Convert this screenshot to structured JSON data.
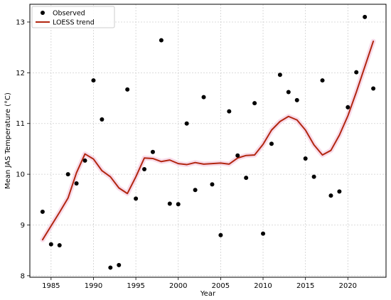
{
  "chart_data": {
    "type": "scatter",
    "xlabel": "Year",
    "ylabel": "Mean JAS Temperature (°C)",
    "xlim": [
      1982.5,
      2024.5
    ],
    "ylim": [
      7.97,
      13.35
    ],
    "x_ticks": [
      1985,
      1990,
      1995,
      2000,
      2005,
      2010,
      2015,
      2020
    ],
    "y_ticks": [
      8,
      9,
      10,
      11,
      12,
      13
    ],
    "grid": true,
    "legend": {
      "placement": "top-left"
    },
    "series": [
      {
        "name": "Observed",
        "kind": "scatter",
        "color": "#000000",
        "x": [
          1984,
          1985,
          1986,
          1987,
          1988,
          1989,
          1990,
          1991,
          1992,
          1993,
          1994,
          1995,
          1996,
          1997,
          1998,
          1999,
          2000,
          2001,
          2002,
          2003,
          2004,
          2005,
          2006,
          2007,
          2008,
          2009,
          2010,
          2011,
          2012,
          2013,
          2014,
          2015,
          2016,
          2017,
          2018,
          2019,
          2020,
          2021,
          2022,
          2023
        ],
        "y": [
          9.26,
          8.62,
          8.6,
          10.0,
          9.82,
          10.27,
          11.85,
          11.08,
          8.16,
          8.21,
          11.67,
          9.52,
          10.1,
          10.44,
          12.64,
          9.42,
          9.41,
          11.0,
          9.69,
          11.52,
          9.8,
          8.8,
          11.24,
          10.37,
          9.93,
          11.4,
          8.83,
          10.6,
          11.96,
          11.62,
          11.46,
          10.31,
          9.95,
          11.85,
          9.58,
          9.66,
          11.32,
          12.01,
          13.1,
          11.69
        ]
      },
      {
        "name": "LOESS trend",
        "kind": "line",
        "color": "#b22610",
        "x": [
          1984,
          1985,
          1986,
          1987,
          1988,
          1989,
          1990,
          1991,
          1992,
          1993,
          1994,
          1995,
          1996,
          1997,
          1998,
          1999,
          2000,
          2001,
          2002,
          2003,
          2004,
          2005,
          2006,
          2007,
          2008,
          2009,
          2010,
          2011,
          2012,
          2013,
          2014,
          2015,
          2016,
          2017,
          2018,
          2019,
          2020,
          2021,
          2022,
          2023
        ],
        "y": [
          8.71,
          8.98,
          9.25,
          9.53,
          10.03,
          10.4,
          10.3,
          10.07,
          9.95,
          9.73,
          9.62,
          9.95,
          10.32,
          10.31,
          10.25,
          10.28,
          10.21,
          10.19,
          10.23,
          10.2,
          10.21,
          10.22,
          10.2,
          10.32,
          10.37,
          10.38,
          10.59,
          10.87,
          11.04,
          11.14,
          11.07,
          10.87,
          10.58,
          10.38,
          10.47,
          10.77,
          11.15,
          11.62,
          12.12,
          12.62
        ]
      }
    ]
  }
}
